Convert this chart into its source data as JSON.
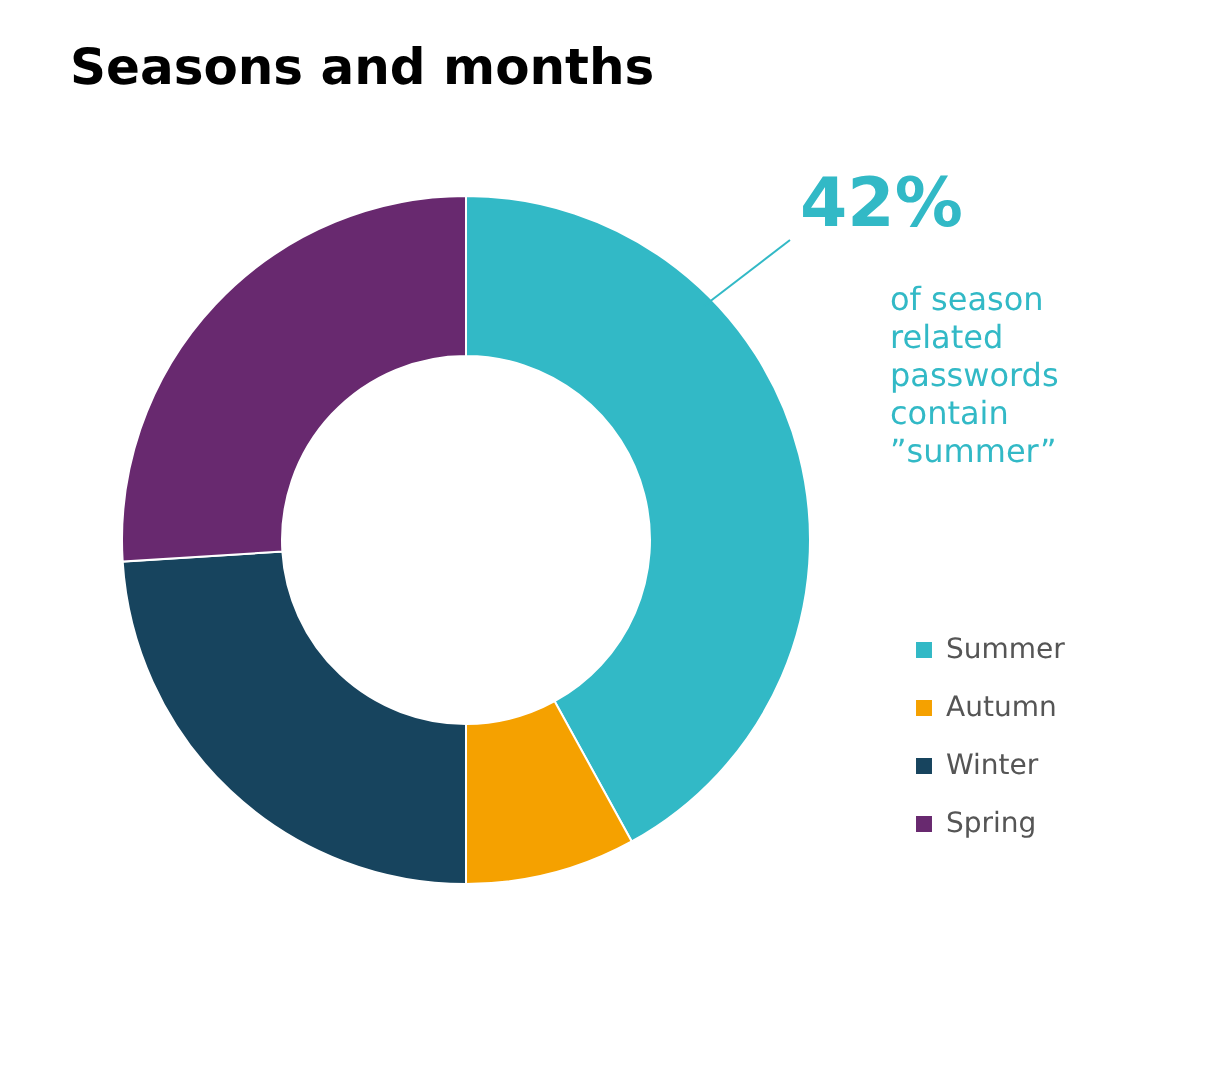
{
  "chart_data": {
    "type": "donut",
    "title": "Seasons and months",
    "categories": [
      "Summer",
      "Autumn",
      "Winter",
      "Spring"
    ],
    "values": [
      42,
      8,
      24,
      26
    ],
    "colors": [
      "#32b9c6",
      "#f5a100",
      "#17445e",
      "#68296f"
    ],
    "legend": "right",
    "annotations": [
      "42%",
      "of season related passwords contain ”summer”"
    ]
  }
}
